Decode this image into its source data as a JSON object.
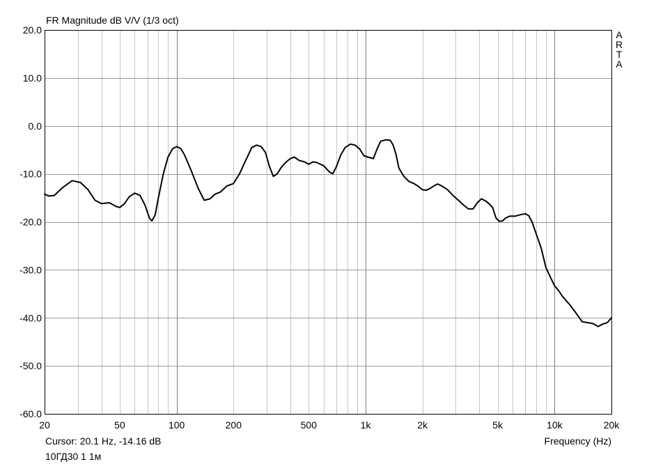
{
  "chart_data": {
    "type": "line",
    "title": "FR Magnitude dB V/V (1/3 oct)",
    "brand": [
      "A",
      "R",
      "T",
      "A"
    ],
    "xlabel": "Frequency (Hz)",
    "ylabel": "",
    "xscale": "log",
    "xlim": [
      20,
      20000
    ],
    "ylim": [
      -60,
      20
    ],
    "x_ticks": [
      {
        "value": 20,
        "label": "20"
      },
      {
        "value": 50,
        "label": "50"
      },
      {
        "value": 100,
        "label": "100"
      },
      {
        "value": 200,
        "label": "200"
      },
      {
        "value": 500,
        "label": "500"
      },
      {
        "value": 1000,
        "label": "1k"
      },
      {
        "value": 2000,
        "label": "2k"
      },
      {
        "value": 5000,
        "label": "5k"
      },
      {
        "value": 10000,
        "label": "10k"
      },
      {
        "value": 20000,
        "label": "20k"
      }
    ],
    "y_ticks": [
      {
        "value": 20,
        "label": "20.0"
      },
      {
        "value": 10,
        "label": "10.0"
      },
      {
        "value": 0,
        "label": "0.0"
      },
      {
        "value": -10,
        "label": "-10.0"
      },
      {
        "value": -20,
        "label": "-20.0"
      },
      {
        "value": -30,
        "label": "-30.0"
      },
      {
        "value": -40,
        "label": "-40.0"
      },
      {
        "value": -50,
        "label": "-50.0"
      },
      {
        "value": -60,
        "label": "-60.0"
      }
    ],
    "grid": true,
    "series": [
      {
        "color": "#000000",
        "points": [
          [
            20,
            -14.2
          ],
          [
            21,
            -14.6
          ],
          [
            22.5,
            -14.5
          ],
          [
            25,
            -12.8
          ],
          [
            28,
            -11.4
          ],
          [
            31,
            -11.8
          ],
          [
            34,
            -13.3
          ],
          [
            37,
            -15.5
          ],
          [
            40,
            -16.2
          ],
          [
            44,
            -16.0
          ],
          [
            48,
            -16.8
          ],
          [
            50,
            -17.0
          ],
          [
            53,
            -16.2
          ],
          [
            56,
            -14.8
          ],
          [
            60,
            -14.0
          ],
          [
            64,
            -14.5
          ],
          [
            68,
            -16.5
          ],
          [
            72,
            -19.3
          ],
          [
            74,
            -19.8
          ],
          [
            77,
            -18.5
          ],
          [
            80,
            -15.0
          ],
          [
            85,
            -10.0
          ],
          [
            90,
            -6.5
          ],
          [
            95,
            -4.8
          ],
          [
            100,
            -4.3
          ],
          [
            105,
            -4.7
          ],
          [
            110,
            -6.0
          ],
          [
            120,
            -9.5
          ],
          [
            130,
            -13.0
          ],
          [
            140,
            -15.5
          ],
          [
            150,
            -15.2
          ],
          [
            160,
            -14.2
          ],
          [
            170,
            -13.8
          ],
          [
            185,
            -12.5
          ],
          [
            200,
            -12.0
          ],
          [
            215,
            -10.0
          ],
          [
            230,
            -7.5
          ],
          [
            250,
            -4.5
          ],
          [
            265,
            -4.0
          ],
          [
            280,
            -4.3
          ],
          [
            295,
            -5.5
          ],
          [
            310,
            -8.5
          ],
          [
            325,
            -10.5
          ],
          [
            340,
            -10.0
          ],
          [
            360,
            -8.5
          ],
          [
            380,
            -7.5
          ],
          [
            400,
            -6.8
          ],
          [
            420,
            -6.5
          ],
          [
            445,
            -7.2
          ],
          [
            475,
            -7.5
          ],
          [
            500,
            -8.0
          ],
          [
            525,
            -7.5
          ],
          [
            550,
            -7.6
          ],
          [
            600,
            -8.3
          ],
          [
            640,
            -9.5
          ],
          [
            670,
            -10.0
          ],
          [
            700,
            -8.5
          ],
          [
            740,
            -6.0
          ],
          [
            780,
            -4.5
          ],
          [
            830,
            -3.8
          ],
          [
            880,
            -4.0
          ],
          [
            930,
            -4.8
          ],
          [
            980,
            -6.2
          ],
          [
            1030,
            -6.5
          ],
          [
            1100,
            -6.8
          ],
          [
            1150,
            -4.8
          ],
          [
            1200,
            -3.2
          ],
          [
            1280,
            -2.9
          ],
          [
            1350,
            -3.0
          ],
          [
            1400,
            -4.0
          ],
          [
            1450,
            -6.0
          ],
          [
            1500,
            -8.8
          ],
          [
            1600,
            -10.6
          ],
          [
            1700,
            -11.6
          ],
          [
            1800,
            -12.0
          ],
          [
            1900,
            -12.6
          ],
          [
            2000,
            -13.3
          ],
          [
            2100,
            -13.4
          ],
          [
            2200,
            -13.0
          ],
          [
            2300,
            -12.5
          ],
          [
            2400,
            -12.1
          ],
          [
            2500,
            -12.4
          ],
          [
            2700,
            -13.2
          ],
          [
            2900,
            -14.5
          ],
          [
            3100,
            -15.5
          ],
          [
            3300,
            -16.5
          ],
          [
            3500,
            -17.3
          ],
          [
            3700,
            -17.3
          ],
          [
            3900,
            -16.0
          ],
          [
            4100,
            -15.2
          ],
          [
            4300,
            -15.6
          ],
          [
            4500,
            -16.2
          ],
          [
            4700,
            -17.0
          ],
          [
            4900,
            -19.2
          ],
          [
            5100,
            -19.9
          ],
          [
            5300,
            -19.8
          ],
          [
            5500,
            -19.2
          ],
          [
            5800,
            -18.8
          ],
          [
            6200,
            -18.8
          ],
          [
            6600,
            -18.5
          ],
          [
            7000,
            -18.3
          ],
          [
            7300,
            -18.7
          ],
          [
            7600,
            -20.0
          ],
          [
            8000,
            -22.5
          ],
          [
            8500,
            -25.5
          ],
          [
            9000,
            -29.5
          ],
          [
            9500,
            -31.5
          ],
          [
            10000,
            -33.3
          ],
          [
            10500,
            -34.3
          ],
          [
            11000,
            -35.5
          ],
          [
            12000,
            -37.2
          ],
          [
            13000,
            -39.0
          ],
          [
            14000,
            -40.8
          ],
          [
            15000,
            -41.0
          ],
          [
            16000,
            -41.2
          ],
          [
            17000,
            -41.8
          ],
          [
            18000,
            -41.3
          ],
          [
            19000,
            -41.0
          ],
          [
            20000,
            -40.0
          ]
        ]
      }
    ],
    "cursor_readout": "Cursor: 20.1 Hz, -14.16 dB",
    "caption": "10ГД30 1 1м"
  }
}
